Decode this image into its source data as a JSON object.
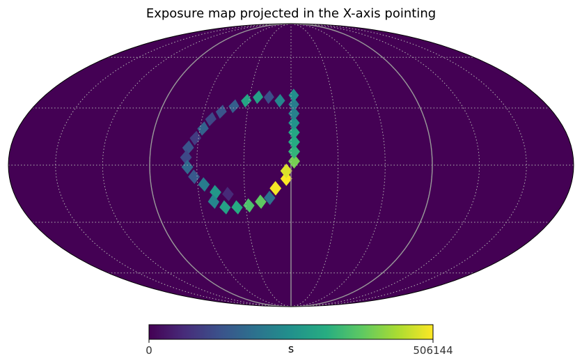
{
  "chart_data": {
    "type": "heatmap",
    "projection": "mollweide",
    "title": "Exposure map projected in the X-axis pointing",
    "background_value": 0,
    "colormap": "viridis",
    "colorbar": {
      "min_label": "0",
      "max_label": "506144",
      "unit": "s",
      "range": [
        0,
        506144
      ]
    },
    "grid": true,
    "ring_cells": [
      {
        "lon": -8,
        "lat": 34,
        "value": 230000
      },
      {
        "lon": -16,
        "lat": 36,
        "value": 120000
      },
      {
        "lon": -24,
        "lat": 36,
        "value": 290000
      },
      {
        "lon": -32,
        "lat": 34,
        "value": 300000
      },
      {
        "lon": -40,
        "lat": 31,
        "value": 150000
      },
      {
        "lon": -48,
        "lat": 28,
        "value": 130000
      },
      {
        "lon": -54,
        "lat": 24,
        "value": 110000
      },
      {
        "lon": -58,
        "lat": 19,
        "value": 160000
      },
      {
        "lon": -62,
        "lat": 14,
        "value": 90000
      },
      {
        "lon": -66,
        "lat": 9,
        "value": 130000
      },
      {
        "lon": -67,
        "lat": 4,
        "value": 110000
      },
      {
        "lon": -66,
        "lat": -1,
        "value": 170000
      },
      {
        "lon": -62,
        "lat": -6,
        "value": 140000
      },
      {
        "lon": -56,
        "lat": -10,
        "value": 210000
      },
      {
        "lon": -49,
        "lat": -14,
        "value": 270000
      },
      {
        "lon": -41,
        "lat": -15,
        "value": 60000
      },
      {
        "lon": -51,
        "lat": -19,
        "value": 230000
      },
      {
        "lon": -44,
        "lat": -22,
        "value": 290000
      },
      {
        "lon": -36,
        "lat": -22,
        "value": 310000
      },
      {
        "lon": -28,
        "lat": -21,
        "value": 360000
      },
      {
        "lon": -20,
        "lat": -19,
        "value": 380000
      },
      {
        "lon": -14,
        "lat": -17,
        "value": 190000
      },
      {
        "lon": -10,
        "lat": -12,
        "value": 500000
      },
      {
        "lon": -3,
        "lat": -7,
        "value": 506144
      },
      {
        "lon": -3,
        "lat": -3,
        "value": 480000
      },
      {
        "lon": 2,
        "lat": 2,
        "value": 400000
      },
      {
        "lon": 2,
        "lat": 7,
        "value": 330000
      },
      {
        "lon": 2,
        "lat": 12,
        "value": 310000
      },
      {
        "lon": 2,
        "lat": 17,
        "value": 300000
      },
      {
        "lon": 2,
        "lat": 22,
        "value": 260000
      },
      {
        "lon": 2,
        "lat": 27,
        "value": 220000
      },
      {
        "lon": 2,
        "lat": 32,
        "value": 210000
      },
      {
        "lon": 2,
        "lat": 37,
        "value": 250000
      }
    ]
  }
}
